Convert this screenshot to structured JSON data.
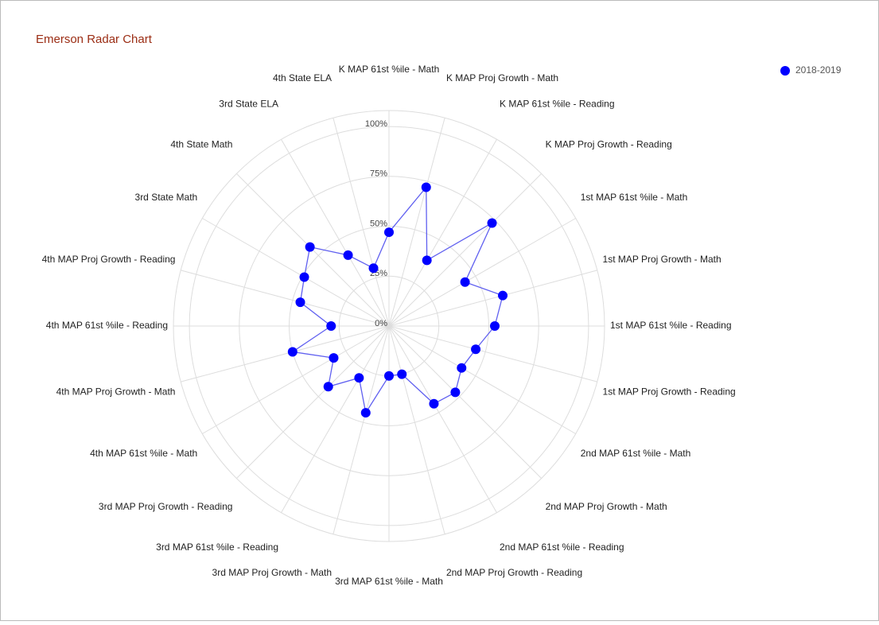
{
  "chart_data": {
    "type": "radar",
    "title": "Emerson Radar Chart",
    "categories": [
      "K MAP 61st %ile - Math",
      "K MAP Proj Growth - Math",
      "K MAP 61st %ile - Reading",
      "K MAP Proj Growth - Reading",
      "1st MAP 61st %ile - Math",
      "1st MAP Proj Growth - Math",
      "1st MAP 61st %ile - Reading",
      "1st MAP Proj Growth - Reading",
      "2nd MAP 61st %ile - Math",
      "2nd MAP Proj Growth - Math",
      "2nd MAP 61st %ile - Reading",
      "2nd MAP Proj Growth - Reading",
      "3rd MAP 61st %ile - Math",
      "3rd MAP Proj Growth - Math",
      "3rd MAP 61st %ile - Reading",
      "3rd MAP Proj Growth - Reading",
      "4th MAP 61st %ile - Math",
      "4th MAP Proj Growth - Math",
      "4th MAP 61st %ile - Reading",
      "4th MAP Proj Growth - Reading",
      "3rd State Math",
      "4th State Math",
      "3rd State ELA",
      "4th State ELA"
    ],
    "series": [
      {
        "name": "2018-2019",
        "color": "#0000ff",
        "values": [
          47,
          72,
          38,
          73,
          44,
          59,
          53,
          45,
          42,
          47,
          45,
          25,
          25,
          45,
          30,
          43,
          32,
          50,
          29,
          46,
          49,
          56,
          41,
          30
        ]
      }
    ],
    "ylim": [
      0,
      108
    ],
    "yticks": [
      {
        "value": 0,
        "label": "0%"
      },
      {
        "value": 25,
        "label": "25%"
      },
      {
        "value": 50,
        "label": "50%"
      },
      {
        "value": 75,
        "label": "75%"
      },
      {
        "value": 100,
        "label": "100%"
      }
    ],
    "grid": true,
    "legend": "top-right"
  }
}
